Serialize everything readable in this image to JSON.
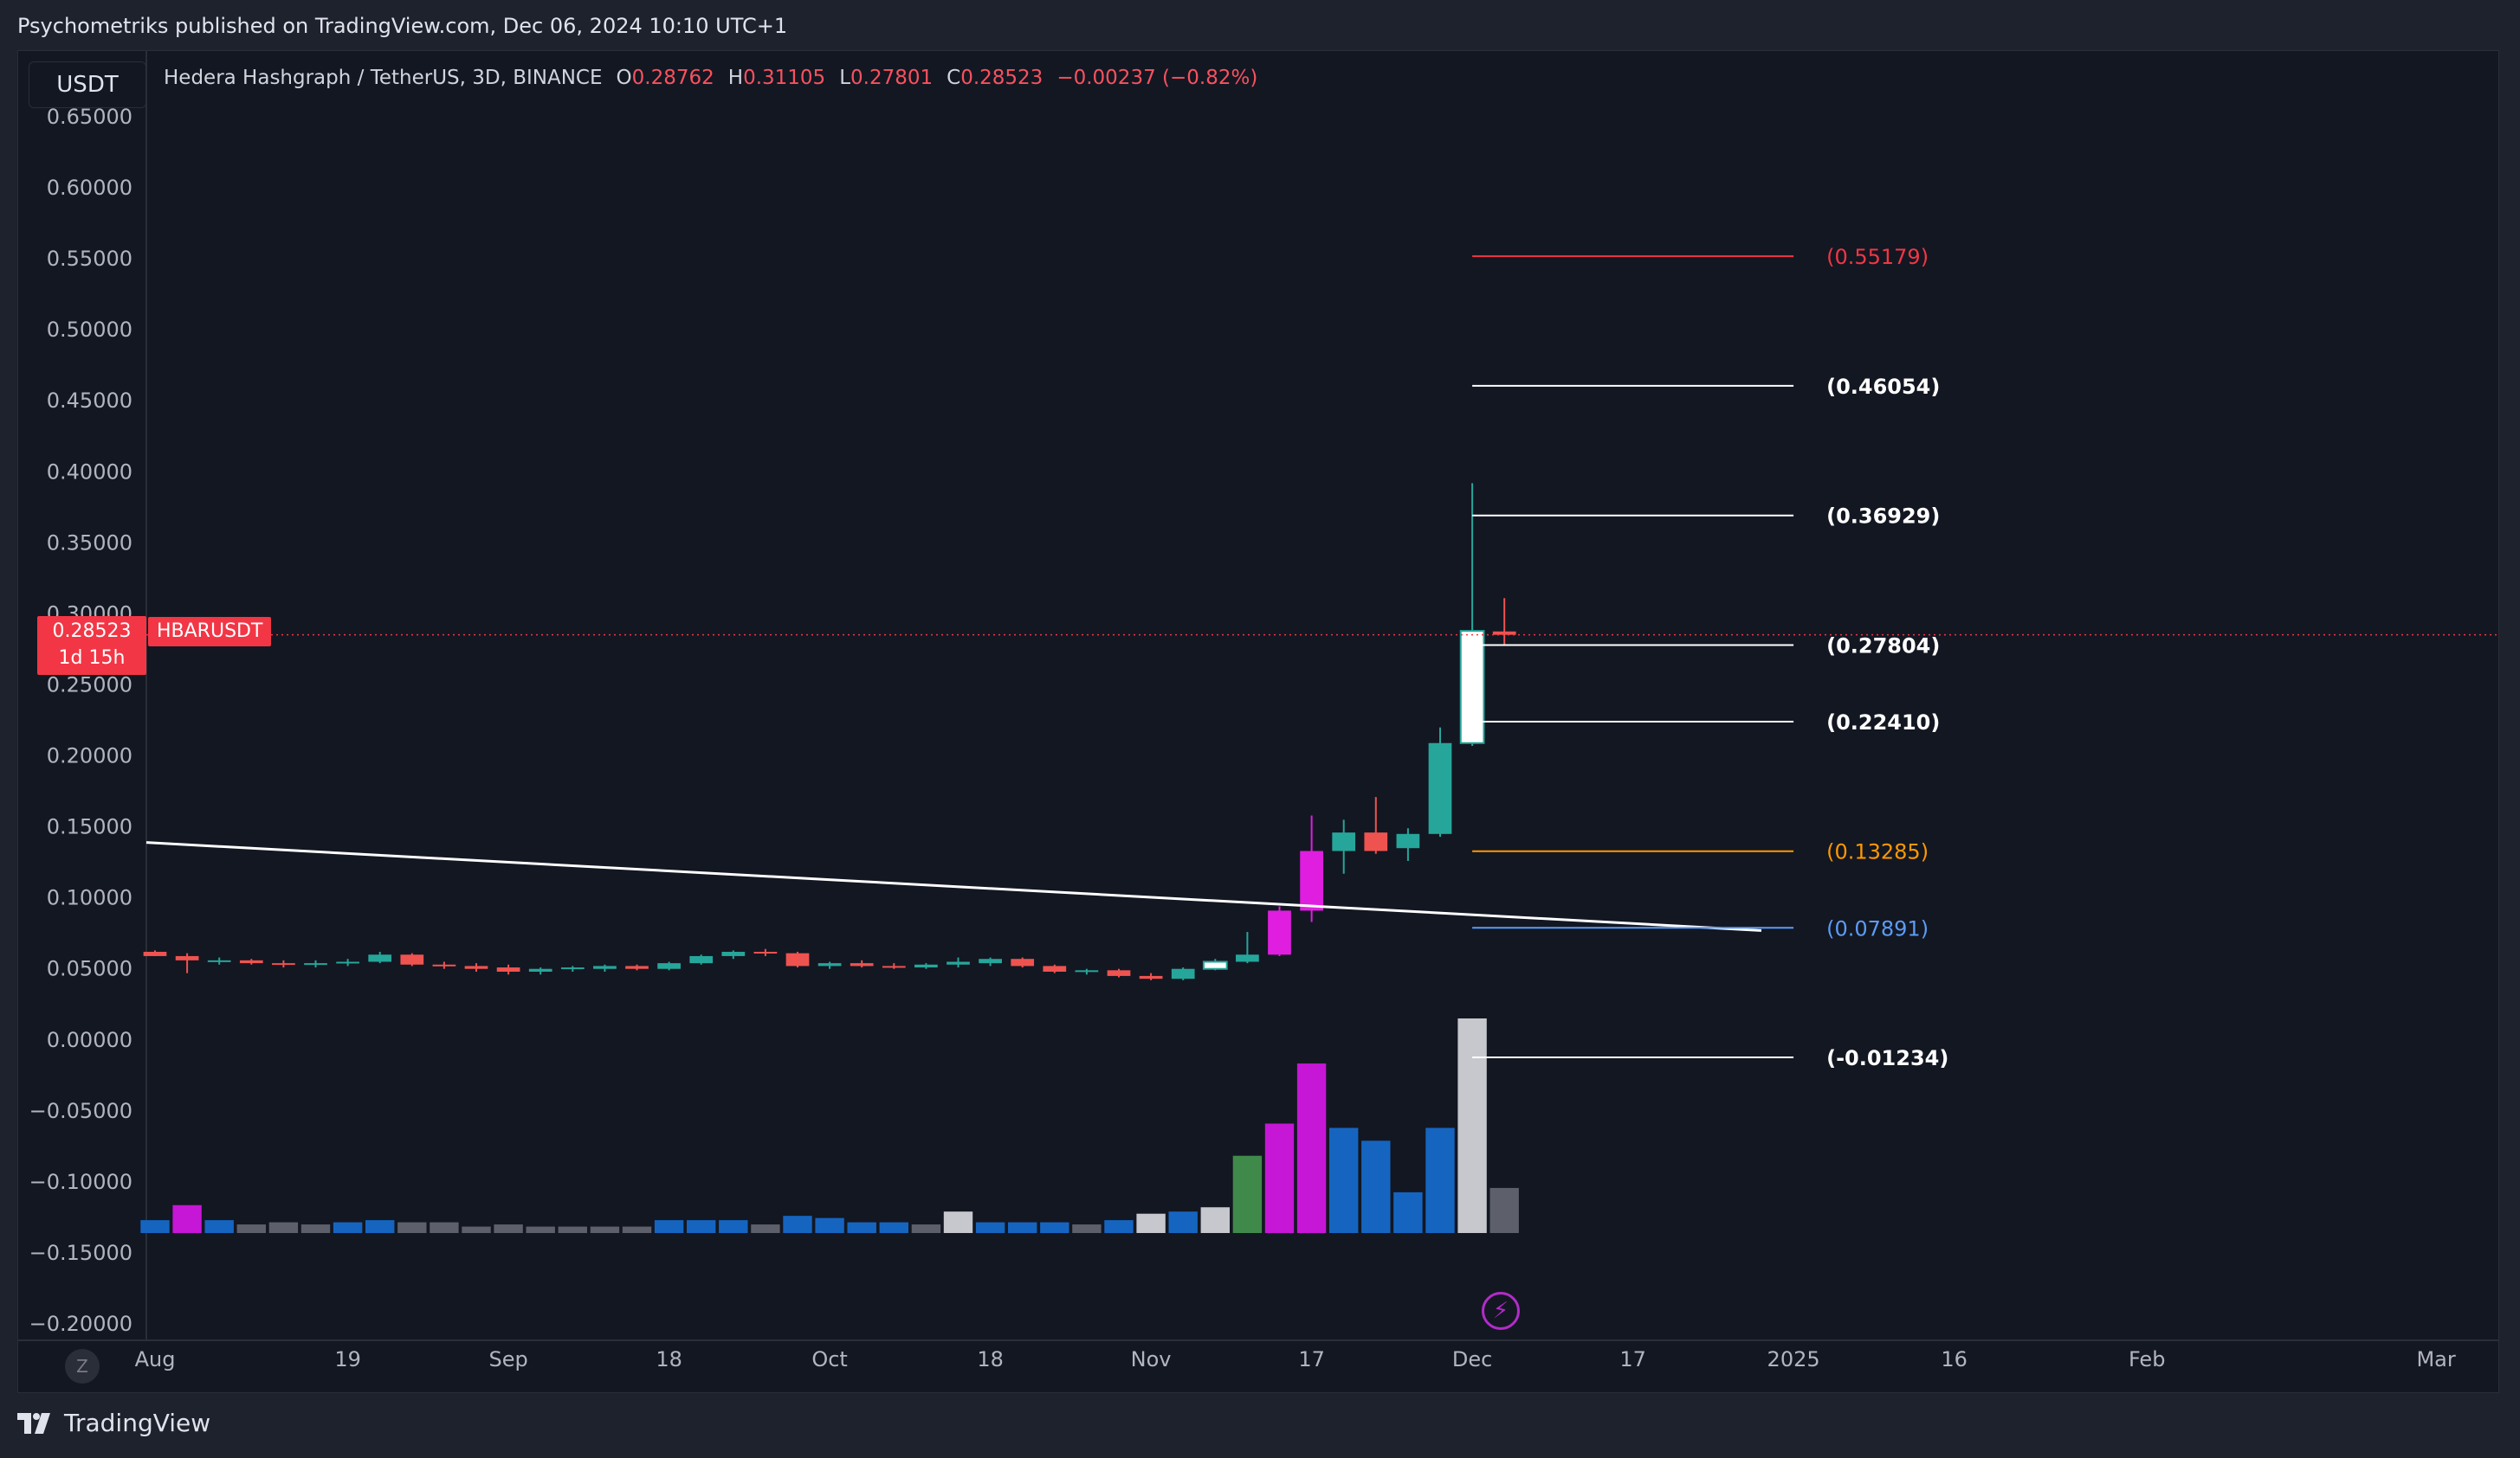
{
  "header": {
    "published": "Psychometriks published on TradingView.com, Dec 06, 2024 10:10 UTC+1"
  },
  "toolbar": {
    "currency": "USDT"
  },
  "legend": {
    "symbol": "Hedera Hashgraph / TetherUS, 3D, BINANCE",
    "o_key": "O",
    "o_val": "0.28762",
    "h_key": "H",
    "h_val": "0.31105",
    "l_key": "L",
    "l_val": "0.27801",
    "c_key": "C",
    "c_val": "0.28523",
    "change": "−0.00237 (−0.82%)"
  },
  "price_tag": {
    "price": "0.28523",
    "countdown": "1d 15h",
    "symbol": "HBARUSDT"
  },
  "footer": {
    "brand": "TradingView"
  },
  "icons": {
    "zoom": "Z",
    "bolt": "⚡"
  },
  "colors": {
    "up": "#26a69a",
    "down": "#ef5350",
    "magenta": "#e01ee0",
    "white": "#ffffff",
    "last": "#f23645"
  },
  "chart_data": {
    "type": "candlestick",
    "title": "",
    "xlabel": "",
    "ylabel": "",
    "ylim": [
      -0.2,
      0.65
    ],
    "y_ticks": [
      "0.65000",
      "0.60000",
      "0.55000",
      "0.50000",
      "0.45000",
      "0.40000",
      "0.35000",
      "0.30000",
      "0.25000",
      "0.20000",
      "0.15000",
      "0.10000",
      "0.05000",
      "0.00000",
      "−0.05000",
      "−0.10000",
      "−0.15000",
      "−0.20000"
    ],
    "y_tick_values": [
      0.65,
      0.6,
      0.55,
      0.5,
      0.45,
      0.4,
      0.35,
      0.3,
      0.25,
      0.2,
      0.15,
      0.1,
      0.05,
      0.0,
      -0.05,
      -0.1,
      -0.15,
      -0.2
    ],
    "x_ticks": [
      {
        "label": "Aug",
        "bar": 0
      },
      {
        "label": "19",
        "bar": 6
      },
      {
        "label": "Sep",
        "bar": 11
      },
      {
        "label": "18",
        "bar": 16
      },
      {
        "label": "Oct",
        "bar": 21
      },
      {
        "label": "18",
        "bar": 26
      },
      {
        "label": "Nov",
        "bar": 31
      },
      {
        "label": "17",
        "bar": 36
      },
      {
        "label": "Dec",
        "bar": 41
      },
      {
        "label": "17",
        "bar": 46
      },
      {
        "label": "2025",
        "bar": 51
      },
      {
        "label": "16",
        "bar": 56
      },
      {
        "label": "Feb",
        "bar": 62
      },
      {
        "label": "Mar",
        "bar": 71
      }
    ],
    "candles": [
      {
        "o": 0.062,
        "h": 0.063,
        "l": 0.059,
        "c": 0.059,
        "color": "down"
      },
      {
        "o": 0.059,
        "h": 0.061,
        "l": 0.047,
        "c": 0.056,
        "color": "down"
      },
      {
        "o": 0.055,
        "h": 0.058,
        "l": 0.053,
        "c": 0.056,
        "color": "up"
      },
      {
        "o": 0.056,
        "h": 0.057,
        "l": 0.053,
        "c": 0.054,
        "color": "down"
      },
      {
        "o": 0.054,
        "h": 0.056,
        "l": 0.051,
        "c": 0.053,
        "color": "down"
      },
      {
        "o": 0.053,
        "h": 0.056,
        "l": 0.051,
        "c": 0.054,
        "color": "up"
      },
      {
        "o": 0.054,
        "h": 0.057,
        "l": 0.052,
        "c": 0.055,
        "color": "up"
      },
      {
        "o": 0.055,
        "h": 0.062,
        "l": 0.054,
        "c": 0.06,
        "color": "up"
      },
      {
        "o": 0.06,
        "h": 0.061,
        "l": 0.052,
        "c": 0.053,
        "color": "down"
      },
      {
        "o": 0.053,
        "h": 0.055,
        "l": 0.05,
        "c": 0.052,
        "color": "down"
      },
      {
        "o": 0.052,
        "h": 0.054,
        "l": 0.048,
        "c": 0.05,
        "color": "down"
      },
      {
        "o": 0.051,
        "h": 0.053,
        "l": 0.046,
        "c": 0.048,
        "color": "down"
      },
      {
        "o": 0.048,
        "h": 0.051,
        "l": 0.046,
        "c": 0.05,
        "color": "up"
      },
      {
        "o": 0.05,
        "h": 0.052,
        "l": 0.048,
        "c": 0.051,
        "color": "up"
      },
      {
        "o": 0.05,
        "h": 0.053,
        "l": 0.048,
        "c": 0.052,
        "color": "up"
      },
      {
        "o": 0.052,
        "h": 0.053,
        "l": 0.049,
        "c": 0.05,
        "color": "down"
      },
      {
        "o": 0.05,
        "h": 0.055,
        "l": 0.049,
        "c": 0.054,
        "color": "up"
      },
      {
        "o": 0.054,
        "h": 0.06,
        "l": 0.053,
        "c": 0.059,
        "color": "up"
      },
      {
        "o": 0.059,
        "h": 0.063,
        "l": 0.057,
        "c": 0.062,
        "color": "up"
      },
      {
        "o": 0.062,
        "h": 0.064,
        "l": 0.059,
        "c": 0.061,
        "color": "down"
      },
      {
        "o": 0.061,
        "h": 0.062,
        "l": 0.051,
        "c": 0.052,
        "color": "down"
      },
      {
        "o": 0.052,
        "h": 0.055,
        "l": 0.05,
        "c": 0.054,
        "color": "up"
      },
      {
        "o": 0.054,
        "h": 0.056,
        "l": 0.051,
        "c": 0.052,
        "color": "down"
      },
      {
        "o": 0.052,
        "h": 0.054,
        "l": 0.05,
        "c": 0.051,
        "color": "down"
      },
      {
        "o": 0.051,
        "h": 0.054,
        "l": 0.05,
        "c": 0.053,
        "color": "up"
      },
      {
        "o": 0.053,
        "h": 0.058,
        "l": 0.051,
        "c": 0.055,
        "color": "up"
      },
      {
        "o": 0.054,
        "h": 0.058,
        "l": 0.052,
        "c": 0.057,
        "color": "up"
      },
      {
        "o": 0.057,
        "h": 0.058,
        "l": 0.051,
        "c": 0.052,
        "color": "down"
      },
      {
        "o": 0.052,
        "h": 0.053,
        "l": 0.047,
        "c": 0.048,
        "color": "down"
      },
      {
        "o": 0.048,
        "h": 0.05,
        "l": 0.046,
        "c": 0.049,
        "color": "up"
      },
      {
        "o": 0.049,
        "h": 0.05,
        "l": 0.044,
        "c": 0.045,
        "color": "down"
      },
      {
        "o": 0.045,
        "h": 0.047,
        "l": 0.042,
        "c": 0.043,
        "color": "down"
      },
      {
        "o": 0.043,
        "h": 0.051,
        "l": 0.042,
        "c": 0.05,
        "color": "up"
      },
      {
        "o": 0.05,
        "h": 0.057,
        "l": 0.049,
        "c": 0.055,
        "color": "white"
      },
      {
        "o": 0.055,
        "h": 0.076,
        "l": 0.054,
        "c": 0.06,
        "color": "up"
      },
      {
        "o": 0.06,
        "h": 0.094,
        "l": 0.059,
        "c": 0.091,
        "color": "magenta"
      },
      {
        "o": 0.091,
        "h": 0.158,
        "l": 0.083,
        "c": 0.133,
        "color": "magenta"
      },
      {
        "o": 0.133,
        "h": 0.155,
        "l": 0.117,
        "c": 0.146,
        "color": "up"
      },
      {
        "o": 0.146,
        "h": 0.171,
        "l": 0.131,
        "c": 0.133,
        "color": "down"
      },
      {
        "o": 0.135,
        "h": 0.149,
        "l": 0.126,
        "c": 0.145,
        "color": "up"
      },
      {
        "o": 0.145,
        "h": 0.22,
        "l": 0.143,
        "c": 0.209,
        "color": "up"
      },
      {
        "o": 0.209,
        "h": 0.392,
        "l": 0.207,
        "c": 0.288,
        "color": "white"
      },
      {
        "o": 0.2876,
        "h": 0.31105,
        "l": 0.27801,
        "c": 0.28523,
        "color": "down"
      }
    ],
    "volume_scale": [
      0,
      1
    ],
    "volume": [
      {
        "v": 0.06,
        "color": "blue"
      },
      {
        "v": 0.13,
        "color": "magenta"
      },
      {
        "v": 0.06,
        "color": "blue"
      },
      {
        "v": 0.04,
        "color": "gray"
      },
      {
        "v": 0.05,
        "color": "gray"
      },
      {
        "v": 0.04,
        "color": "gray"
      },
      {
        "v": 0.05,
        "color": "blue"
      },
      {
        "v": 0.06,
        "color": "blue"
      },
      {
        "v": 0.05,
        "color": "gray"
      },
      {
        "v": 0.05,
        "color": "gray"
      },
      {
        "v": 0.03,
        "color": "gray"
      },
      {
        "v": 0.04,
        "color": "gray"
      },
      {
        "v": 0.03,
        "color": "gray"
      },
      {
        "v": 0.03,
        "color": "gray"
      },
      {
        "v": 0.03,
        "color": "gray"
      },
      {
        "v": 0.03,
        "color": "gray"
      },
      {
        "v": 0.06,
        "color": "blue"
      },
      {
        "v": 0.06,
        "color": "blue"
      },
      {
        "v": 0.06,
        "color": "blue"
      },
      {
        "v": 0.04,
        "color": "gray"
      },
      {
        "v": 0.08,
        "color": "blue"
      },
      {
        "v": 0.07,
        "color": "blue"
      },
      {
        "v": 0.05,
        "color": "blue"
      },
      {
        "v": 0.05,
        "color": "blue"
      },
      {
        "v": 0.04,
        "color": "gray"
      },
      {
        "v": 0.1,
        "color": "silver"
      },
      {
        "v": 0.05,
        "color": "blue"
      },
      {
        "v": 0.05,
        "color": "blue"
      },
      {
        "v": 0.05,
        "color": "blue"
      },
      {
        "v": 0.04,
        "color": "gray"
      },
      {
        "v": 0.06,
        "color": "blue"
      },
      {
        "v": 0.09,
        "color": "silver"
      },
      {
        "v": 0.1,
        "color": "blue"
      },
      {
        "v": 0.12,
        "color": "silver"
      },
      {
        "v": 0.36,
        "color": "green"
      },
      {
        "v": 0.51,
        "color": "magenta"
      },
      {
        "v": 0.79,
        "color": "magenta"
      },
      {
        "v": 0.49,
        "color": "blue"
      },
      {
        "v": 0.43,
        "color": "blue"
      },
      {
        "v": 0.19,
        "color": "blue"
      },
      {
        "v": 0.49,
        "color": "blue"
      },
      {
        "v": 1.0,
        "color": "silver"
      },
      {
        "v": 0.21,
        "color": "gray"
      }
    ],
    "trendline": {
      "from": {
        "bar": 0,
        "y": 0.139
      },
      "to": {
        "bar": 50,
        "y": 0.077
      }
    },
    "levels": [
      {
        "value": 0.55179,
        "label": "(0.55179)",
        "color": "#f23645"
      },
      {
        "value": 0.46054,
        "label": "(0.46054)",
        "color": "#ffffff"
      },
      {
        "value": 0.36929,
        "label": "(0.36929)",
        "color": "#ffffff"
      },
      {
        "value": 0.27804,
        "label": "(0.27804)",
        "color": "#ffffff"
      },
      {
        "value": 0.2241,
        "label": "(0.22410)",
        "color": "#ffffff"
      },
      {
        "value": 0.13285,
        "label": "(0.13285)",
        "color": "#ff9800"
      },
      {
        "value": 0.07891,
        "label": "(0.07891)",
        "color": "#5b9cf6"
      },
      {
        "value": -0.01234,
        "label": "(-0.01234)",
        "color": "#ffffff"
      }
    ],
    "levels_range": {
      "from_bar": 41,
      "to_bar": 51
    },
    "last_price": 0.28523
  }
}
